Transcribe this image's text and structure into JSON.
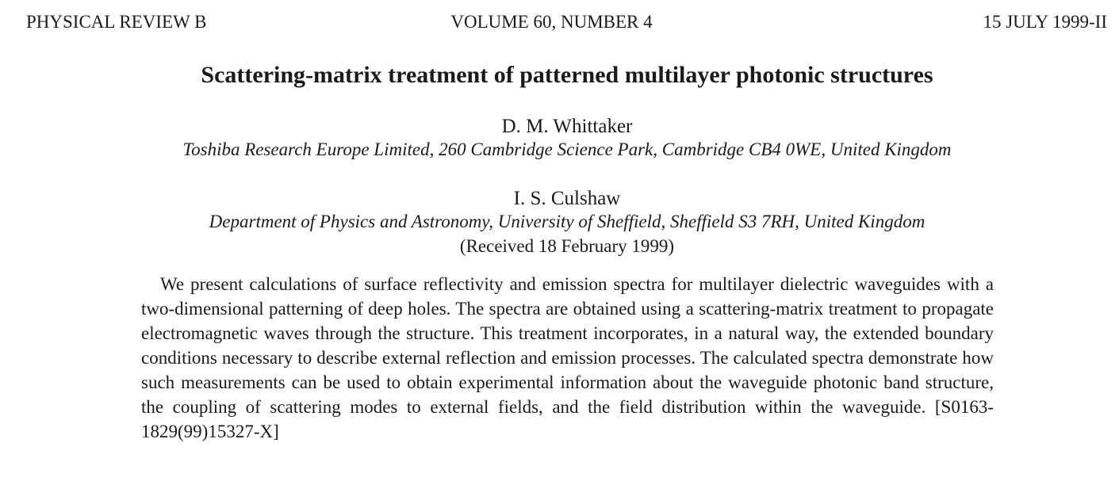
{
  "header": {
    "journal": "PHYSICAL REVIEW B",
    "volume": "VOLUME 60, NUMBER 4",
    "date": "15 JULY 1999-II"
  },
  "title": "Scattering-matrix treatment of patterned multilayer photonic structures",
  "authors": [
    {
      "name": "D. M. Whittaker",
      "affiliation": "Toshiba Research Europe Limited, 260 Cambridge Science Park, Cambridge CB4 0WE, United Kingdom"
    },
    {
      "name": "I. S. Culshaw",
      "affiliation": "Department of Physics and Astronomy, University of Sheffield, Sheffield S3 7RH, United Kingdom"
    }
  ],
  "received": "(Received 18 February 1999)",
  "abstract": "We present calculations of surface reflectivity and emission spectra for multilayer dielectric waveguides with a two-dimensional patterning of deep holes. The spectra are obtained using a scattering-matrix treatment to propagate electromagnetic waves through the structure. This treatment incorporates, in a natural way, the extended boundary conditions necessary to describe external reflection and emission processes. The calculated spectra demonstrate how such measurements can be used to obtain experimental information about the wave­guide photonic band structure, the coupling of scattering modes to external fields, and the field distribution within the waveguide. [S0163-1829(99)15327-X]"
}
